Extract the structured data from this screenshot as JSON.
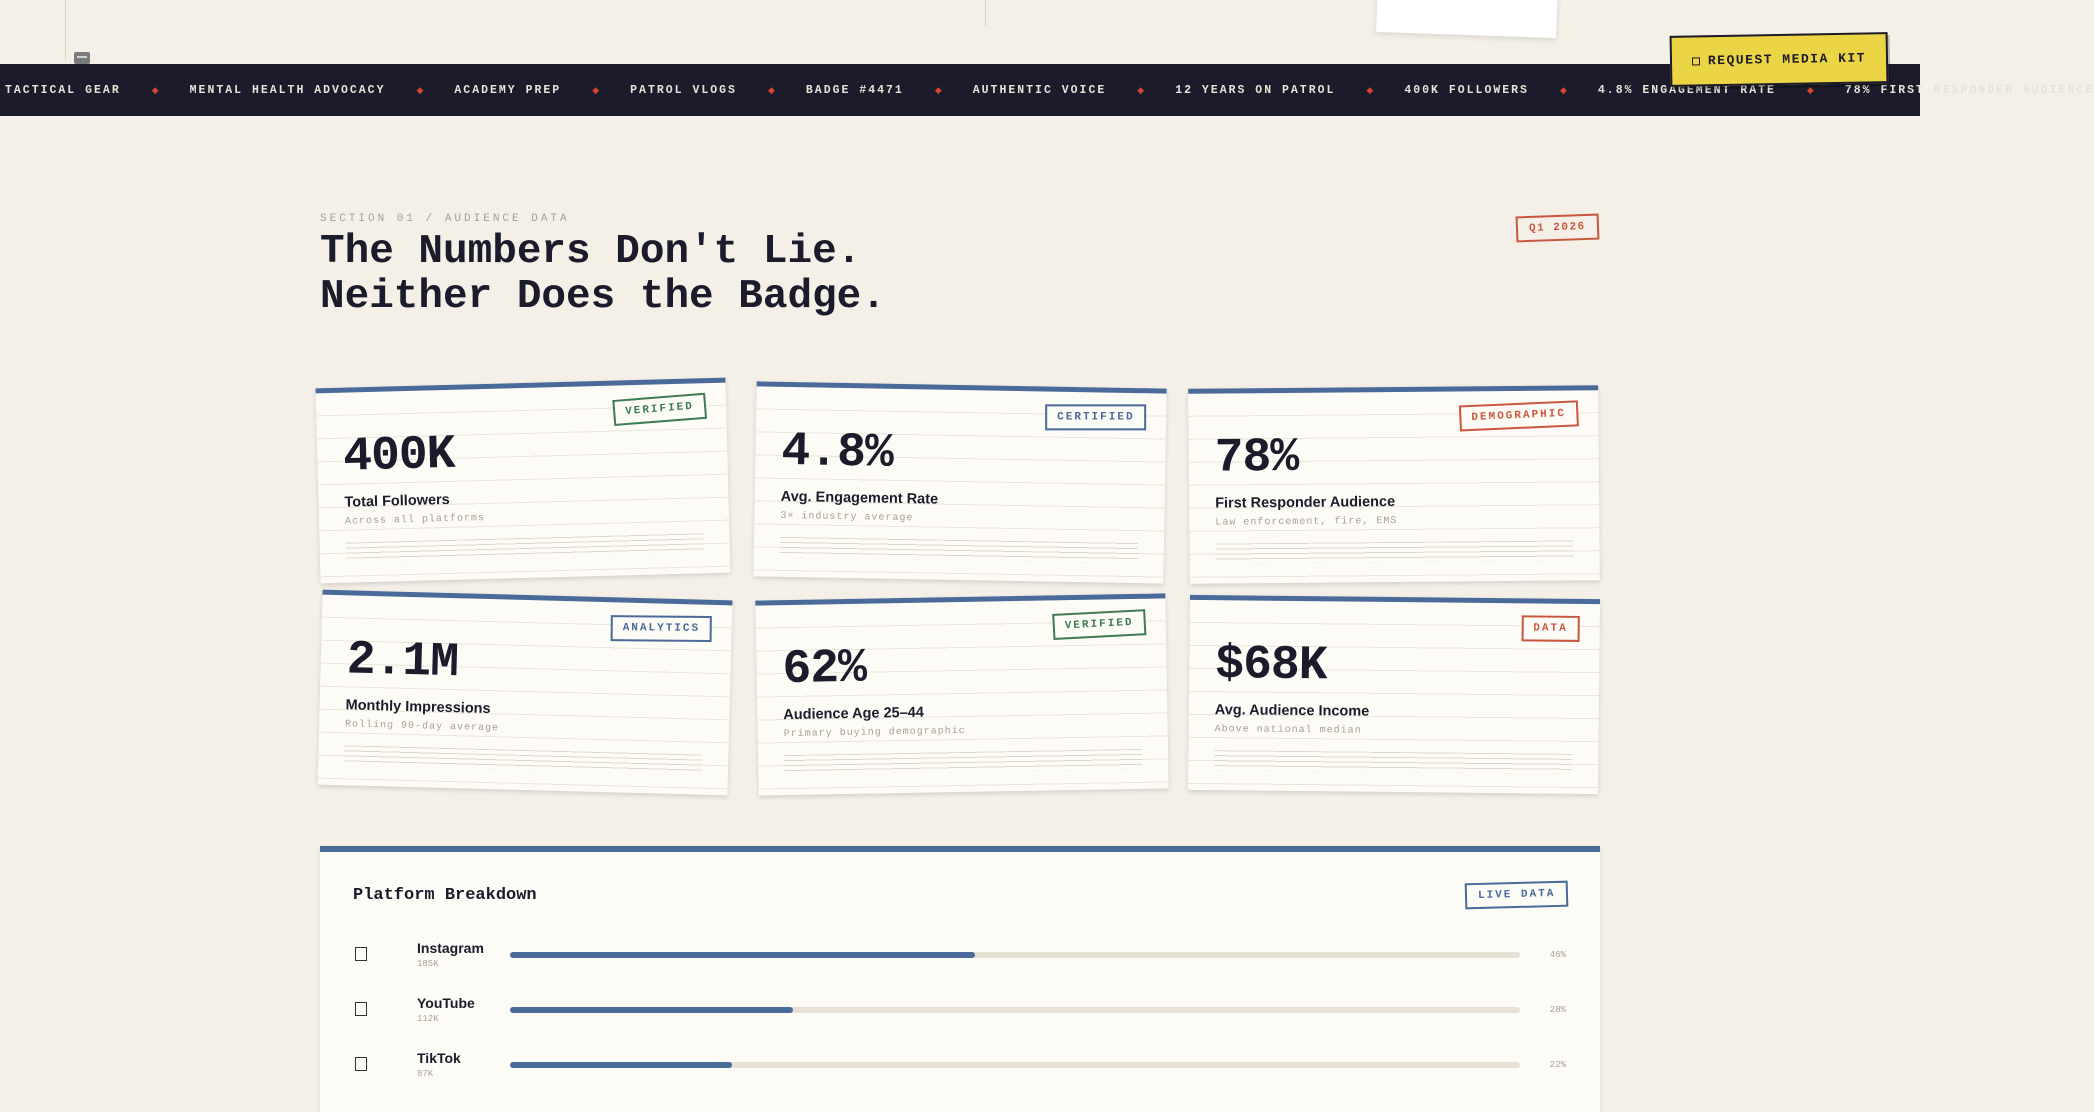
{
  "ticker": {
    "items": [
      "TACTICAL GEAR",
      "MENTAL HEALTH ADVOCACY",
      "ACADEMY PREP",
      "PATROL VLOGS",
      "BADGE #4471",
      "AUTHENTIC VOICE",
      "12 YEARS ON PATROL",
      "400K FOLLOWERS",
      "4.8% ENGAGEMENT RATE",
      "78% FIRST RESPONDER AUDIENCE"
    ],
    "separator": "◆"
  },
  "cta": {
    "label": "REQUEST MEDIA KIT",
    "icon": "square-icon"
  },
  "header": {
    "eyebrow": "SECTION 01 / AUDIENCE DATA",
    "headline_line1": "The Numbers Don't Lie.",
    "headline_line2": "Neither Does the Badge.",
    "period_badge": "Q1 2026"
  },
  "cards": [
    {
      "value": "400K",
      "label": "Total Followers",
      "sub": "Across all platforms",
      "stamp": "VERIFIED",
      "stamp_color": "#3e7a52"
    },
    {
      "value": "4.8%",
      "label": "Avg. Engagement Rate",
      "sub": "3× industry average",
      "stamp": "CERTIFIED",
      "stamp_color": "#4a6a9a"
    },
    {
      "value": "78%",
      "label": "First Responder Audience",
      "sub": "Law enforcement, fire, EMS",
      "stamp": "DEMOGRAPHIC",
      "stamp_color": "#c9573f"
    },
    {
      "value": "2.1M",
      "label": "Monthly Impressions",
      "sub": "Rolling 90-day average",
      "stamp": "ANALYTICS",
      "stamp_color": "#4a6a9a"
    },
    {
      "value": "62%",
      "label": "Audience Age 25–44",
      "sub": "Primary buying demographic",
      "stamp": "VERIFIED",
      "stamp_color": "#3e7a52"
    },
    {
      "value": "$68K",
      "label": "Avg. Audience Income",
      "sub": "Above national median",
      "stamp": "DATA",
      "stamp_color": "#c9573f"
    }
  ],
  "platforms": {
    "title": "Platform Breakdown",
    "badge": "LIVE DATA",
    "rows": [
      {
        "name": "Instagram",
        "count": "185K",
        "pct_label": "46%",
        "pct": 46
      },
      {
        "name": "YouTube",
        "count": "112K",
        "pct_label": "28%",
        "pct": 28
      },
      {
        "name": "TikTok",
        "count": "87K",
        "pct_label": "22%",
        "pct": 22
      }
    ]
  },
  "colors": {
    "navy": "#1b1b2b",
    "accent_blue": "#4a6a9a",
    "accent_red": "#c9573f",
    "accent_green": "#3e7a52",
    "cta_yellow": "#ecd544",
    "background": "#f4f0e8"
  }
}
